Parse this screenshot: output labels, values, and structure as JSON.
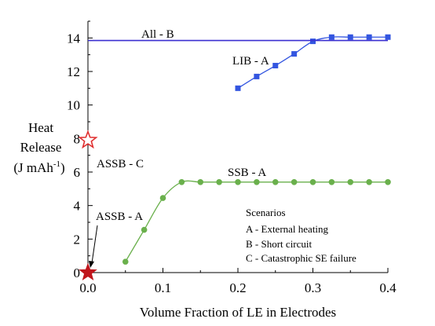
{
  "chart_data": {
    "type": "line",
    "xlabel": "Volume Fraction of LE in Electrodes",
    "ylabel_lines": [
      "Heat",
      "Release",
      "(J mAh",
      "-1",
      ")"
    ],
    "xlim": [
      0,
      0.4
    ],
    "ylim": [
      0,
      15
    ],
    "x_ticks": [
      0.0,
      0.1,
      0.2,
      0.3,
      0.4
    ],
    "x_tick_labels": [
      "0.0",
      "0.1",
      "0.2",
      "0.3",
      "0.4"
    ],
    "y_ticks": [
      0,
      2,
      4,
      6,
      8,
      10,
      12,
      14
    ],
    "y_tick_labels": [
      "0",
      "2",
      "4",
      "6",
      "8",
      "10",
      "12",
      "14"
    ],
    "grid": false,
    "series": [
      {
        "name": "LIB - A",
        "color": "#3355e0",
        "marker": "square",
        "x": [
          0.2,
          0.225,
          0.25,
          0.275,
          0.3,
          0.325,
          0.35,
          0.375,
          0.4
        ],
        "y": [
          11.0,
          11.7,
          12.35,
          13.05,
          13.8,
          14.05,
          14.05,
          14.05,
          14.05
        ]
      },
      {
        "name": "SSB - A",
        "color": "#6ab04c",
        "marker": "circle",
        "x": [
          0.05,
          0.075,
          0.1,
          0.125,
          0.15,
          0.175,
          0.2,
          0.225,
          0.25,
          0.275,
          0.3,
          0.325,
          0.35,
          0.375,
          0.4
        ],
        "y": [
          0.65,
          2.55,
          4.45,
          5.4,
          5.4,
          5.4,
          5.4,
          5.4,
          5.4,
          5.4,
          5.4,
          5.4,
          5.4,
          5.4,
          5.4
        ]
      },
      {
        "name": "All - B",
        "color": "#3a2fd0",
        "marker": "none",
        "x": [
          0.0,
          0.4
        ],
        "y": [
          13.85,
          13.85
        ]
      },
      {
        "name": "ASSB - C",
        "color": "#e03030",
        "marker": "open-star",
        "x": [
          0.0
        ],
        "y": [
          7.9
        ]
      },
      {
        "name": "ASSB - A",
        "color": "#c0161c",
        "marker": "filled-star",
        "x": [
          0.0
        ],
        "y": [
          0.0
        ]
      }
    ],
    "annotations": {
      "all_b": "All - B",
      "lib_a": "LIB - A",
      "ssb_a": "SSB - A",
      "assb_c": "ASSB - C",
      "assb_a": "ASSB - A"
    },
    "legend": {
      "title": "Scenarios",
      "items": [
        "A - External heating",
        "B - Short circuit",
        "C - Catastrophic SE failure"
      ],
      "placement": "bottom-right"
    }
  }
}
